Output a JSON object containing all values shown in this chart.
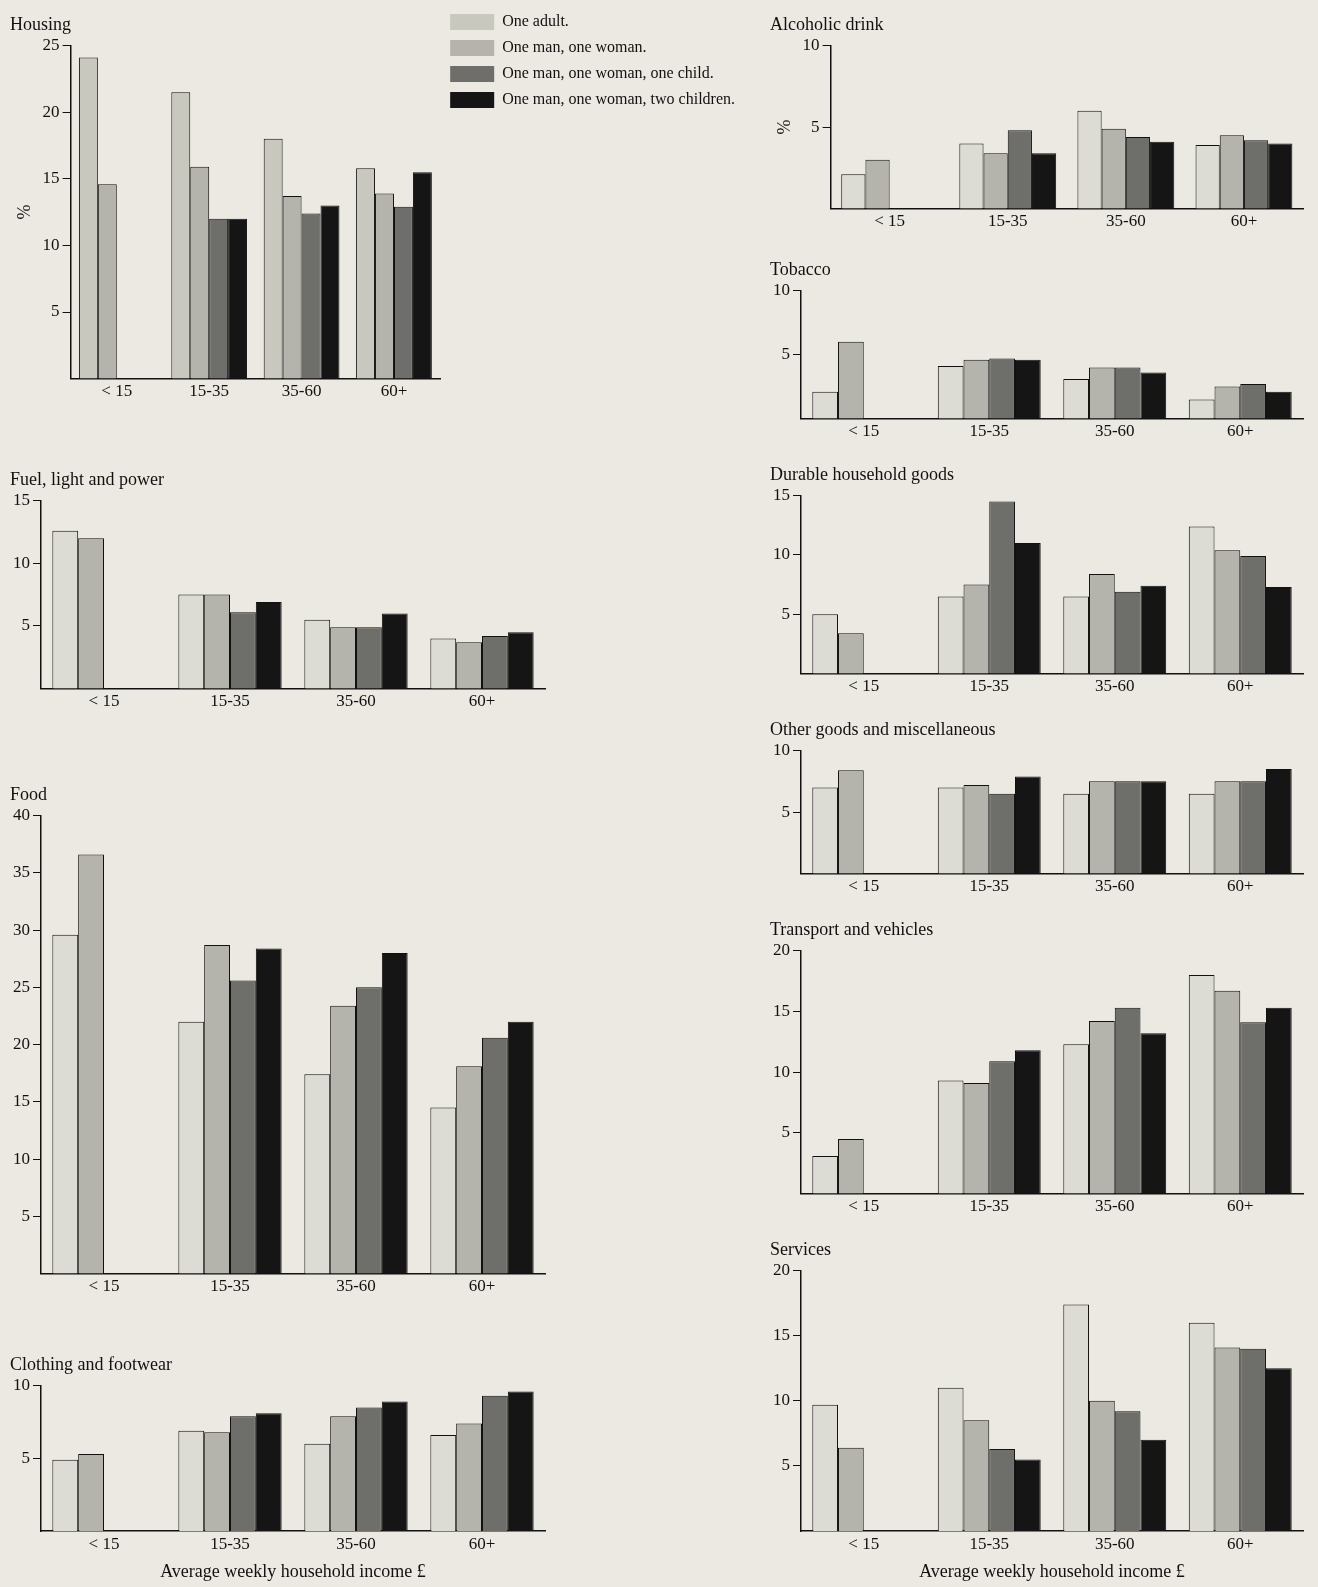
{
  "chart_data": [
    {
      "type": "bar",
      "title": "Housing",
      "ylabel": "%",
      "categories": [
        "< 15",
        "15-35",
        "35-60",
        "60+"
      ],
      "ylim": [
        0,
        25
      ],
      "yticks": [
        5,
        10,
        15,
        20,
        25
      ],
      "legend": "right",
      "series": [
        {
          "name": "One adult.",
          "color": "#c8c8bf",
          "values": [
            24.1,
            21.5,
            18.0,
            15.8
          ]
        },
        {
          "name": "One man, one woman.",
          "color": "#b4b4ac",
          "values": [
            14.6,
            15.9,
            13.7,
            13.9
          ]
        },
        {
          "name": "One man, one woman, one child.",
          "color": "#6e6e6a",
          "values": [
            null,
            12.0,
            12.4,
            12.9
          ]
        },
        {
          "name": "One man, one woman, two children.",
          "color": "#151515",
          "values": [
            null,
            12.0,
            13.0,
            15.5
          ]
        }
      ]
    },
    {
      "type": "bar",
      "title": "Fuel, light and power",
      "categories": [
        "< 15",
        "15-35",
        "35-60",
        "60+"
      ],
      "ylim": [
        0,
        15
      ],
      "yticks": [
        5,
        10,
        15
      ],
      "series": [
        {
          "color": "#dcdcd4",
          "values": [
            12.6,
            7.5,
            5.5,
            4.0
          ]
        },
        {
          "color": "#b4b4ac",
          "values": [
            12.0,
            7.5,
            4.9,
            3.7
          ]
        },
        {
          "color": "#6e6e6a",
          "values": [
            null,
            6.1,
            4.9,
            4.2
          ]
        },
        {
          "color": "#151515",
          "values": [
            null,
            6.9,
            6.0,
            4.5
          ]
        }
      ]
    },
    {
      "type": "bar",
      "title": "Food",
      "categories": [
        "< 15",
        "15-35",
        "35-60",
        "60+"
      ],
      "ylim": [
        0,
        40
      ],
      "yticks": [
        5,
        10,
        15,
        20,
        25,
        30,
        35,
        40
      ],
      "series": [
        {
          "color": "#dcdcd4",
          "values": [
            29.6,
            22.0,
            17.4,
            14.5
          ]
        },
        {
          "color": "#b4b4ac",
          "values": [
            36.6,
            28.7,
            23.4,
            18.1
          ]
        },
        {
          "color": "#6e6e6a",
          "values": [
            null,
            25.6,
            25.0,
            20.6
          ]
        },
        {
          "color": "#151515",
          "values": [
            null,
            28.4,
            28.0,
            22.0
          ]
        }
      ]
    },
    {
      "type": "bar",
      "title": "Clothing and footwear",
      "xlabel": "Average weekly household income £",
      "categories": [
        "< 15",
        "15-35",
        "35-60",
        "60+"
      ],
      "ylim": [
        0,
        10
      ],
      "yticks": [
        5,
        10
      ],
      "series": [
        {
          "color": "#dcdcd4",
          "values": [
            4.9,
            6.9,
            6.0,
            6.6
          ]
        },
        {
          "color": "#b4b4ac",
          "values": [
            5.3,
            6.8,
            7.9,
            7.4
          ]
        },
        {
          "color": "#6e6e6a",
          "values": [
            null,
            7.9,
            8.5,
            9.3
          ]
        },
        {
          "color": "#151515",
          "values": [
            null,
            8.1,
            8.9,
            9.6
          ]
        }
      ]
    },
    {
      "type": "bar",
      "title": "Alcoholic drink",
      "ylabel": "%",
      "categories": [
        "< 15",
        "15-35",
        "35-60",
        "60+"
      ],
      "ylim": [
        0,
        10
      ],
      "yticks": [
        5,
        10
      ],
      "series": [
        {
          "color": "#dcdcd4",
          "values": [
            2.1,
            4.0,
            6.0,
            3.9
          ]
        },
        {
          "color": "#b4b4ac",
          "values": [
            3.0,
            3.4,
            4.9,
            4.5
          ]
        },
        {
          "color": "#6e6e6a",
          "values": [
            null,
            4.8,
            4.4,
            4.2
          ]
        },
        {
          "color": "#151515",
          "values": [
            null,
            3.4,
            4.1,
            4.0
          ]
        }
      ]
    },
    {
      "type": "bar",
      "title": "Tobacco",
      "categories": [
        "< 15",
        "15-35",
        "35-60",
        "60+"
      ],
      "ylim": [
        0,
        10
      ],
      "yticks": [
        5,
        10
      ],
      "series": [
        {
          "color": "#dcdcd4",
          "values": [
            2.1,
            4.1,
            3.1,
            1.5
          ]
        },
        {
          "color": "#b4b4ac",
          "values": [
            6.0,
            4.6,
            4.0,
            2.5
          ]
        },
        {
          "color": "#6e6e6a",
          "values": [
            null,
            4.7,
            4.0,
            2.7
          ]
        },
        {
          "color": "#151515",
          "values": [
            null,
            4.6,
            3.6,
            2.1
          ]
        }
      ]
    },
    {
      "type": "bar",
      "title": "Durable household goods",
      "categories": [
        "< 15",
        "15-35",
        "35-60",
        "60+"
      ],
      "ylim": [
        0,
        15
      ],
      "yticks": [
        5,
        10,
        15
      ],
      "series": [
        {
          "color": "#dcdcd4",
          "values": [
            5.0,
            6.5,
            6.5,
            12.4
          ]
        },
        {
          "color": "#b4b4ac",
          "values": [
            3.4,
            7.5,
            8.4,
            10.4
          ]
        },
        {
          "color": "#6e6e6a",
          "values": [
            null,
            14.5,
            6.9,
            9.9
          ]
        },
        {
          "color": "#151515",
          "values": [
            null,
            11.0,
            7.4,
            7.3
          ]
        }
      ]
    },
    {
      "type": "bar",
      "title": "Other goods and miscellaneous",
      "categories": [
        "< 15",
        "15-35",
        "35-60",
        "60+"
      ],
      "ylim": [
        0,
        10
      ],
      "yticks": [
        5,
        10
      ],
      "series": [
        {
          "color": "#dcdcd4",
          "values": [
            7.0,
            7.0,
            6.5,
            6.5
          ]
        },
        {
          "color": "#b4b4ac",
          "values": [
            8.4,
            7.2,
            7.5,
            7.5
          ]
        },
        {
          "color": "#6e6e6a",
          "values": [
            null,
            6.5,
            7.5,
            7.5
          ]
        },
        {
          "color": "#151515",
          "values": [
            null,
            7.9,
            7.5,
            8.5
          ]
        }
      ]
    },
    {
      "type": "bar",
      "title": "Transport and vehicles",
      "categories": [
        "< 15",
        "15-35",
        "35-60",
        "60+"
      ],
      "ylim": [
        0,
        20
      ],
      "yticks": [
        5,
        10,
        15,
        20
      ],
      "series": [
        {
          "color": "#dcdcd4",
          "values": [
            3.1,
            9.3,
            12.3,
            18.0
          ]
        },
        {
          "color": "#b4b4ac",
          "values": [
            4.5,
            9.1,
            14.2,
            16.7
          ]
        },
        {
          "color": "#6e6e6a",
          "values": [
            null,
            10.9,
            15.3,
            14.1
          ]
        },
        {
          "color": "#151515",
          "values": [
            null,
            11.8,
            13.2,
            15.3
          ]
        }
      ]
    },
    {
      "type": "bar",
      "title": "Services",
      "xlabel": "Average weekly household income £",
      "categories": [
        "< 15",
        "15-35",
        "35-60",
        "60+"
      ],
      "ylim": [
        0,
        20
      ],
      "yticks": [
        5,
        10,
        15,
        20
      ],
      "series": [
        {
          "color": "#dcdcd4",
          "values": [
            9.7,
            11.0,
            17.4,
            16.0
          ]
        },
        {
          "color": "#b4b4ac",
          "values": [
            6.4,
            8.5,
            10.0,
            14.1
          ]
        },
        {
          "color": "#6e6e6a",
          "values": [
            null,
            6.3,
            9.2,
            14.0
          ]
        },
        {
          "color": "#151515",
          "values": [
            null,
            5.5,
            7.0,
            12.5
          ]
        }
      ]
    }
  ]
}
